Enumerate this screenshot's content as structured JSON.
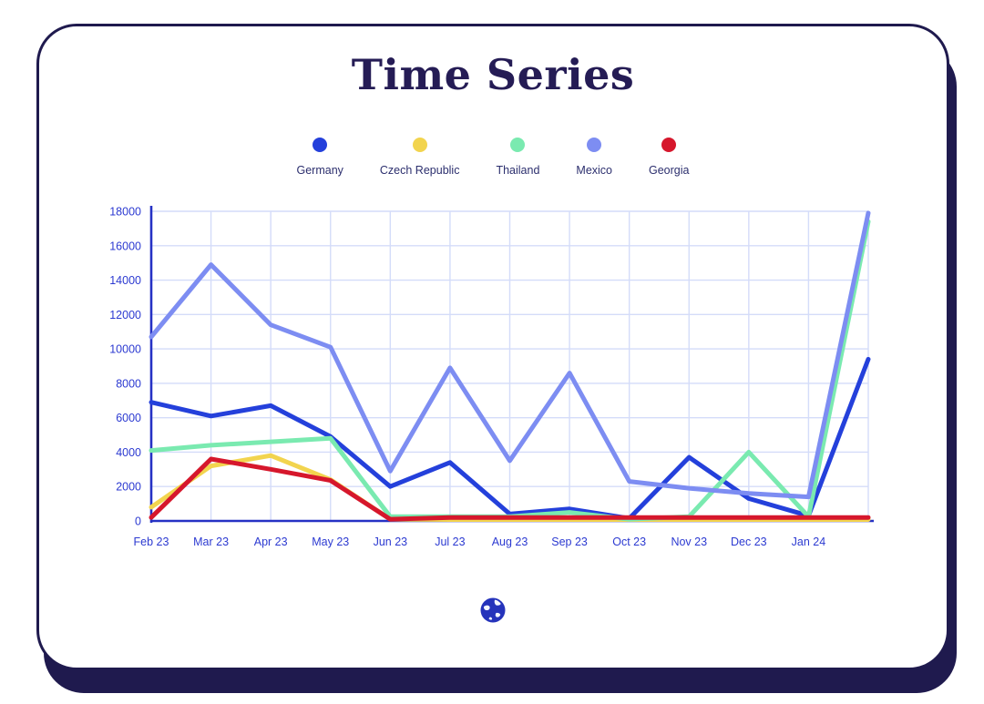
{
  "page": {
    "title": "Time Series"
  },
  "legend": [
    {
      "name": "Germany",
      "color": "#2440db"
    },
    {
      "name": "Czech Republic",
      "color": "#f2d44e"
    },
    {
      "name": "Thailand",
      "color": "#7aeab0"
    },
    {
      "name": "Mexico",
      "color": "#7d8df2"
    },
    {
      "name": "Georgia",
      "color": "#d6172c"
    }
  ],
  "chart_data": {
    "type": "line",
    "title": "Time Series",
    "categories": [
      "Feb 23",
      "Mar 23",
      "Apr 23",
      "May 23",
      "Jun 23",
      "Jul 23",
      "Aug 23",
      "Sep 23",
      "Oct 23",
      "Nov 23",
      "Dec 23",
      "Jan 24",
      ""
    ],
    "series": [
      {
        "name": "Germany",
        "color": "#2440db",
        "values": [
          6900,
          6100,
          6700,
          4900,
          2000,
          3400,
          400,
          700,
          150,
          3700,
          1300,
          300,
          9400
        ]
      },
      {
        "name": "Czech Republic",
        "color": "#f2d44e",
        "values": [
          800,
          3200,
          3800,
          2400,
          100,
          80,
          80,
          80,
          80,
          80,
          80,
          80,
          80
        ]
      },
      {
        "name": "Thailand",
        "color": "#7aeab0",
        "values": [
          4100,
          4400,
          4600,
          4800,
          250,
          250,
          250,
          500,
          100,
          250,
          4000,
          250,
          17400
        ]
      },
      {
        "name": "Mexico",
        "color": "#7d8df2",
        "values": [
          10700,
          14900,
          11400,
          10100,
          2900,
          8900,
          3500,
          8600,
          2300,
          1900,
          1600,
          1400,
          17900
        ]
      },
      {
        "name": "Georgia",
        "color": "#d6172c",
        "values": [
          200,
          3600,
          3000,
          2350,
          100,
          200,
          200,
          200,
          200,
          200,
          200,
          200,
          200
        ]
      }
    ],
    "xlabel": "",
    "ylabel": "",
    "ylim": [
      0,
      18000
    ],
    "y_ticks": [
      0,
      2000,
      4000,
      6000,
      8000,
      10000,
      12000,
      14000,
      16000,
      18000
    ],
    "grid": true,
    "legend_position": "top",
    "colors": {
      "axis": "#2531c4",
      "grid": "#d4dcf9",
      "tick_text": "#2c3ad1",
      "card_border": "#1f1a4e"
    }
  },
  "footer": {
    "icon": "globe-icon"
  }
}
